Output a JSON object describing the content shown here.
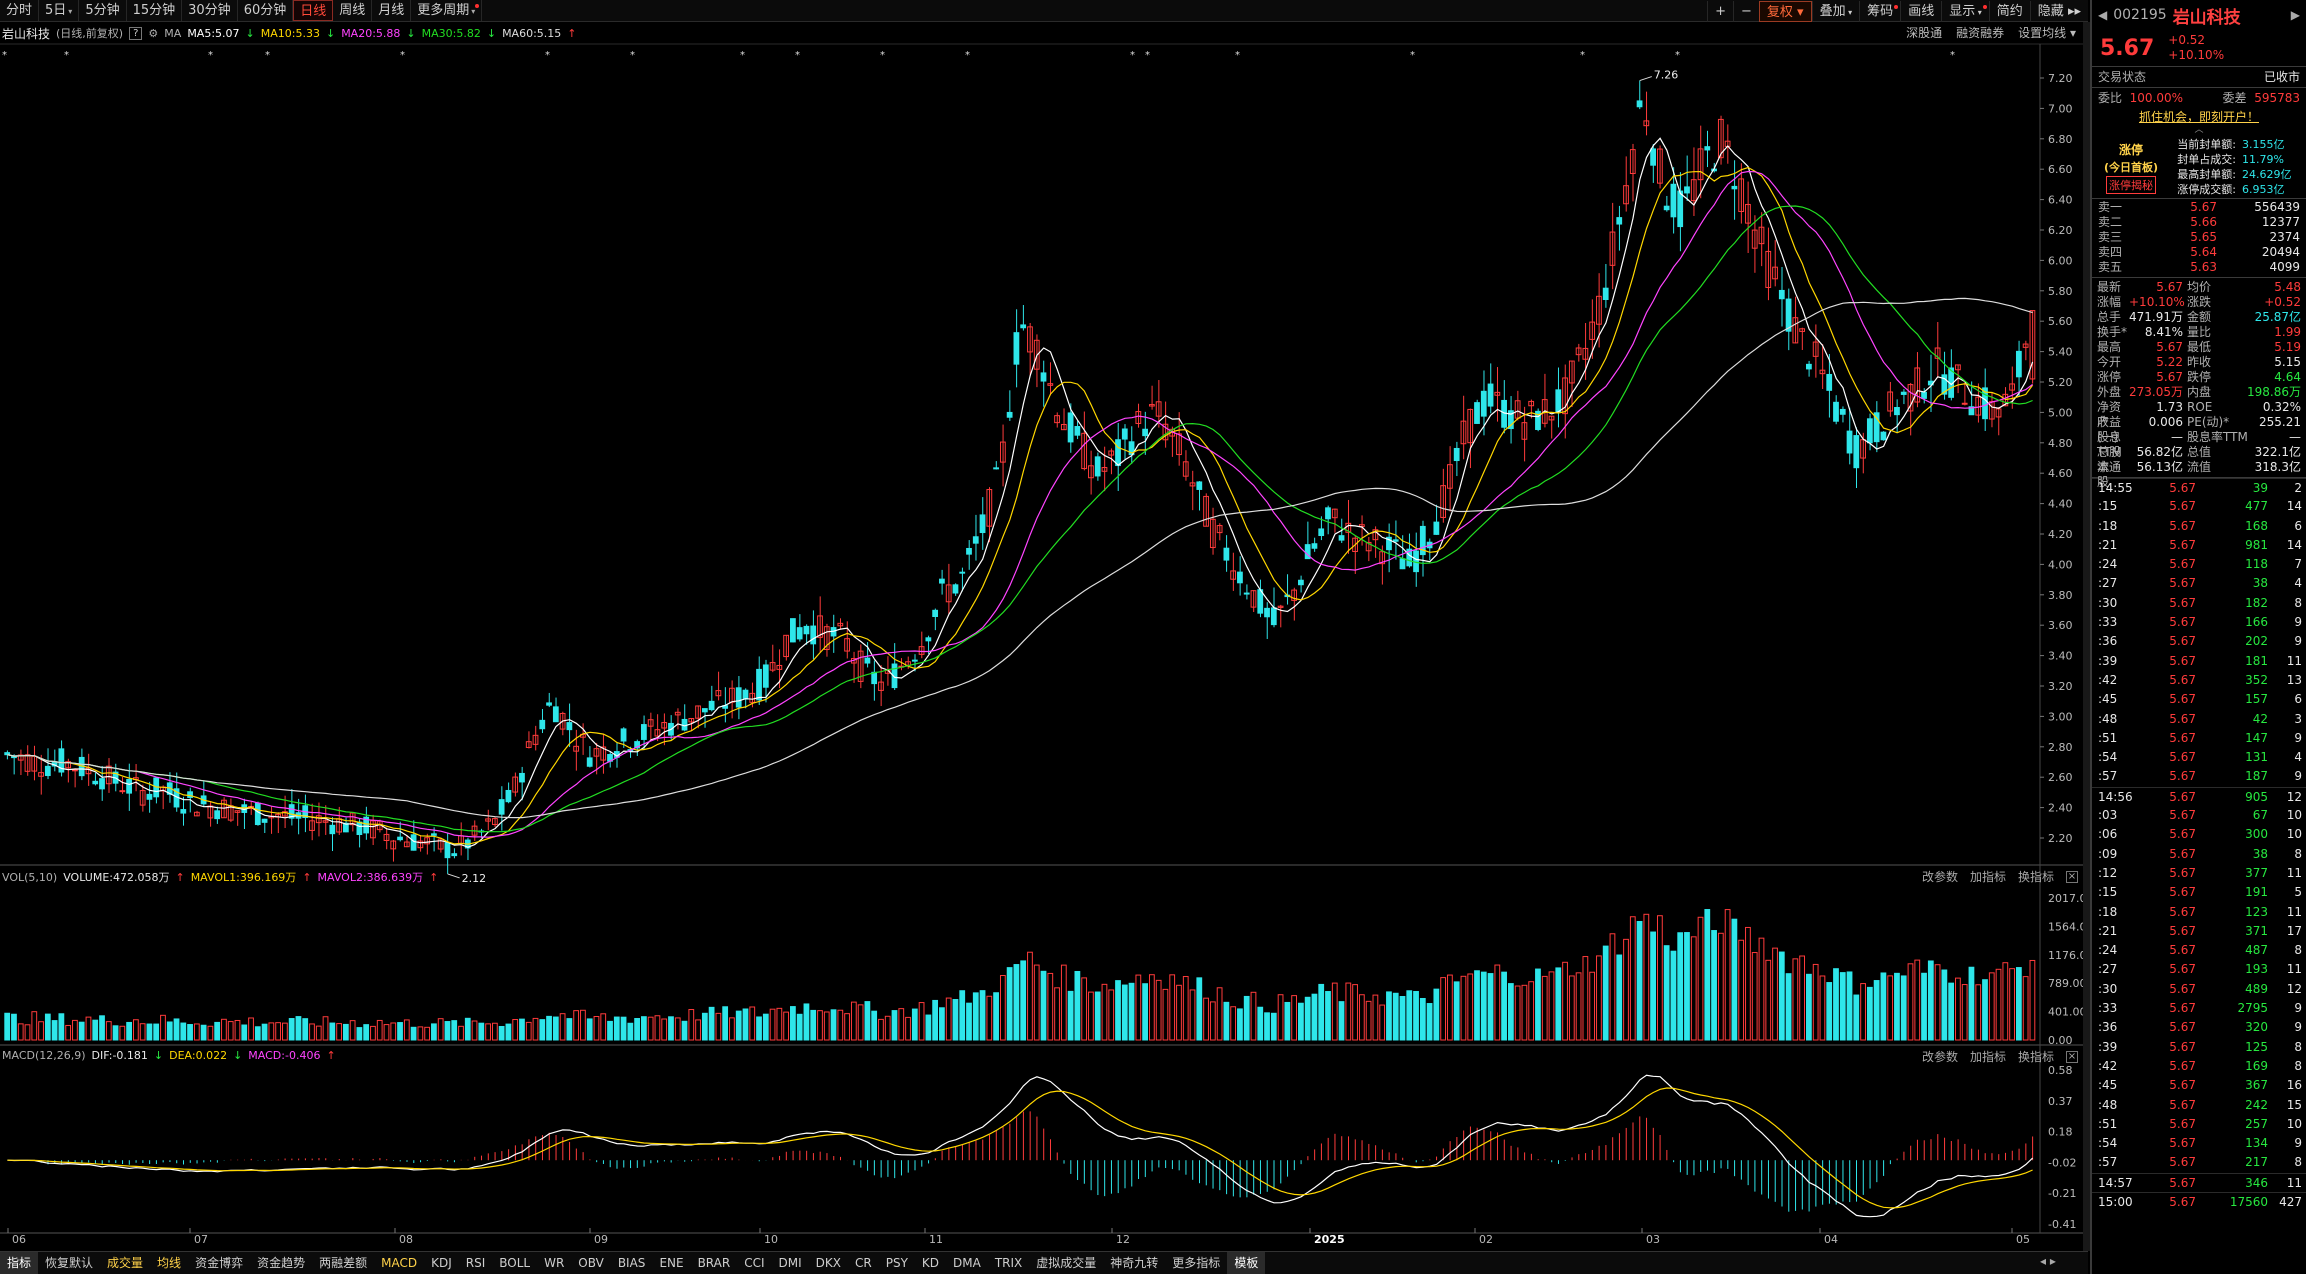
{
  "period_tabs": [
    {
      "label": "分时"
    },
    {
      "label": "5日",
      "caret": true
    },
    {
      "label": "5分钟"
    },
    {
      "label": "15分钟"
    },
    {
      "label": "30分钟"
    },
    {
      "label": "60分钟"
    },
    {
      "label": "日线",
      "active": true
    },
    {
      "label": "周线"
    },
    {
      "label": "月线"
    },
    {
      "label": "更多周期",
      "caret": true,
      "dot": true
    }
  ],
  "toolbar": {
    "plus": "+",
    "minus": "−",
    "fuquan": "复权",
    "diejia": "叠加",
    "chouma": "筹码",
    "huaxian": "画线",
    "xianshi": "显示",
    "jianyue": "简约",
    "yincang": "隐藏"
  },
  "ma_legend": {
    "stock_name": "岩山科技",
    "qualifier": "(日线,前复权)",
    "ma_label": "MA",
    "ma5": "MA5:5.07",
    "ma10": "MA10:5.33",
    "ma20": "MA20:5.88",
    "ma30": "MA30:5.82",
    "ma60": "MA60:5.15"
  },
  "chart_links": {
    "shengutong": "深股通",
    "rongzi": "融资融券",
    "shezhi": "设置均线"
  },
  "price_axis": [
    "7.20",
    "7.00",
    "6.80",
    "6.60",
    "6.40",
    "6.20",
    "6.00",
    "5.80",
    "5.60",
    "5.40",
    "5.20",
    "5.00",
    "4.80",
    "4.60",
    "4.40",
    "4.20",
    "4.00",
    "3.80",
    "3.60",
    "3.40",
    "3.20",
    "3.00",
    "2.80",
    "2.60",
    "2.40",
    "2.20"
  ],
  "annotations": {
    "high": "7.26",
    "low": "2.12"
  },
  "volume_panel": {
    "title": "VOL(5,10)",
    "volume": "VOLUME:472.058万",
    "mavol1": "MAVOL1:396.169万",
    "mavol2": "MAVOL2:386.639万",
    "axis": [
      "2017.00",
      "1564.00",
      "1176.00",
      "789.00",
      "401.00",
      "0.00"
    ]
  },
  "macd_panel": {
    "title": "MACD(12,26,9)",
    "dif": "DIF:-0.181",
    "dea": "DEA:0.022",
    "macd": "MACD:-0.406",
    "axis": [
      "0.58",
      "0.37",
      "0.18",
      "-0.02",
      "-0.21",
      "-0.41"
    ]
  },
  "panel_links": {
    "gaicanshu": "改参数",
    "jiazhibiao": "加指标",
    "huanzhibiao": "换指标"
  },
  "date_axis": [
    "06",
    "07",
    "08",
    "09",
    "10",
    "11",
    "12",
    "2025",
    "02",
    "03",
    "04",
    "05"
  ],
  "bottom_tabs": [
    {
      "label": "指标",
      "active": true
    },
    {
      "label": "恢复默认"
    },
    {
      "label": "成交量",
      "yellow": true
    },
    {
      "label": "均线",
      "yellow": true
    },
    {
      "label": "资金博弈"
    },
    {
      "label": "资金趋势"
    },
    {
      "label": "两融差额"
    },
    {
      "label": "MACD",
      "yellow": true
    },
    {
      "label": "KDJ"
    },
    {
      "label": "RSI"
    },
    {
      "label": "BOLL"
    },
    {
      "label": "WR"
    },
    {
      "label": "OBV"
    },
    {
      "label": "BIAS"
    },
    {
      "label": "ENE"
    },
    {
      "label": "BRAR"
    },
    {
      "label": "CCI"
    },
    {
      "label": "DMI"
    },
    {
      "label": "DKX"
    },
    {
      "label": "CR"
    },
    {
      "label": "PSY"
    },
    {
      "label": "KD"
    },
    {
      "label": "DMA"
    },
    {
      "label": "TRIX"
    },
    {
      "label": "虚拟成交量"
    },
    {
      "label": "神奇九转"
    },
    {
      "label": "更多指标"
    },
    {
      "label": "模板",
      "active": true
    }
  ],
  "quote": {
    "code": "002195",
    "name": "岩山科技",
    "price": "5.67",
    "change": "+0.52",
    "pct": "+10.10%",
    "status_label": "交易状态",
    "status_value": "已收市",
    "weibi_label": "委比",
    "weibi_value": "100.00%",
    "weicha_label": "委差",
    "weicha_value": "595783",
    "promo": "抓住机会，即刻开户！",
    "limit_up_title": "涨停",
    "limit_up_sub": "(今日首板)",
    "limit_up_link": "涨停揭秘",
    "limit_stats": [
      {
        "label": "当前封单额:",
        "value": "3.155亿"
      },
      {
        "label": "封单占成交:",
        "value": "11.79%"
      },
      {
        "label": "最高封单额:",
        "value": "24.629亿"
      },
      {
        "label": "涨停成交额:",
        "value": "6.953亿"
      }
    ]
  },
  "order_book": [
    {
      "label": "卖一",
      "price": "5.67",
      "vol": "556439"
    },
    {
      "label": "卖二",
      "price": "5.66",
      "vol": "12377"
    },
    {
      "label": "卖三",
      "price": "5.65",
      "vol": "2374"
    },
    {
      "label": "卖四",
      "price": "5.64",
      "vol": "20494"
    },
    {
      "label": "卖五",
      "price": "5.63",
      "vol": "4099"
    }
  ],
  "stats": [
    {
      "l1": "最新",
      "v1": "5.67",
      "c1": "red",
      "l2": "均价",
      "v2": "5.48",
      "c2": "red"
    },
    {
      "l1": "涨幅",
      "v1": "+10.10%",
      "c1": "red",
      "l2": "涨跌",
      "v2": "+0.52",
      "c2": "red"
    },
    {
      "l1": "总手",
      "v1": "471.91万",
      "c1": "white",
      "l2": "金额",
      "v2": "25.87亿",
      "c2": "cyan"
    },
    {
      "l1": "换手*",
      "v1": "8.41%",
      "c1": "white",
      "l2": "量比",
      "v2": "1.99",
      "c2": "red"
    },
    {
      "l1": "最高",
      "v1": "5.67",
      "c1": "red",
      "l2": "最低",
      "v2": "5.19",
      "c2": "red"
    },
    {
      "l1": "今开",
      "v1": "5.22",
      "c1": "red",
      "l2": "昨收",
      "v2": "5.15",
      "c2": "white"
    },
    {
      "l1": "涨停",
      "v1": "5.67",
      "c1": "red",
      "l2": "跌停",
      "v2": "4.64",
      "c2": "green"
    },
    {
      "l1": "外盘",
      "v1": "273.05万",
      "c1": "red",
      "l2": "内盘",
      "v2": "198.86万",
      "c2": "green"
    },
    {
      "l1": "净资产",
      "v1": "1.73",
      "c1": "white",
      "l2": "ROE",
      "v2": "0.32%",
      "c2": "white"
    },
    {
      "l1": "收益(一)",
      "v1": "0.006",
      "c1": "white",
      "l2": "PE(动)*",
      "v2": "255.21",
      "c2": "white"
    },
    {
      "l1": "股息TTM",
      "v1": "—",
      "c1": "white",
      "l2": "股息率TTM",
      "v2": "—",
      "c2": "white"
    },
    {
      "l1": "总股本",
      "v1": "56.82亿",
      "c1": "white",
      "l2": "总值",
      "v2": "322.1亿",
      "c2": "white"
    },
    {
      "l1": "流通股",
      "v1": "56.13亿",
      "c1": "white",
      "l2": "流值",
      "v2": "318.3亿",
      "c2": "white"
    }
  ],
  "ticks": [
    {
      "t": "14:55",
      "p": "5.67",
      "v": "39",
      "n": "2"
    },
    {
      "t": ":15",
      "p": "5.67",
      "v": "477",
      "n": "14"
    },
    {
      "t": ":18",
      "p": "5.67",
      "v": "168",
      "n": "6"
    },
    {
      "t": ":21",
      "p": "5.67",
      "v": "981",
      "n": "14"
    },
    {
      "t": ":24",
      "p": "5.67",
      "v": "118",
      "n": "7"
    },
    {
      "t": ":27",
      "p": "5.67",
      "v": "38",
      "n": "4"
    },
    {
      "t": ":30",
      "p": "5.67",
      "v": "182",
      "n": "8"
    },
    {
      "t": ":33",
      "p": "5.67",
      "v": "166",
      "n": "9"
    },
    {
      "t": ":36",
      "p": "5.67",
      "v": "202",
      "n": "9"
    },
    {
      "t": ":39",
      "p": "5.67",
      "v": "181",
      "n": "11"
    },
    {
      "t": ":42",
      "p": "5.67",
      "v": "352",
      "n": "13"
    },
    {
      "t": ":45",
      "p": "5.67",
      "v": "157",
      "n": "6"
    },
    {
      "t": ":48",
      "p": "5.67",
      "v": "42",
      "n": "3"
    },
    {
      "t": ":51",
      "p": "5.67",
      "v": "147",
      "n": "9"
    },
    {
      "t": ":54",
      "p": "5.67",
      "v": "131",
      "n": "4"
    },
    {
      "t": ":57",
      "p": "5.67",
      "v": "187",
      "n": "9"
    },
    {
      "t": "14:56",
      "p": "5.67",
      "v": "905",
      "n": "12"
    },
    {
      "t": ":03",
      "p": "5.67",
      "v": "67",
      "n": "10"
    },
    {
      "t": ":06",
      "p": "5.67",
      "v": "300",
      "n": "10"
    },
    {
      "t": ":09",
      "p": "5.67",
      "v": "38",
      "n": "8"
    },
    {
      "t": ":12",
      "p": "5.67",
      "v": "377",
      "n": "11"
    },
    {
      "t": ":15",
      "p": "5.67",
      "v": "191",
      "n": "5"
    },
    {
      "t": ":18",
      "p": "5.67",
      "v": "123",
      "n": "11"
    },
    {
      "t": ":21",
      "p": "5.67",
      "v": "371",
      "n": "17"
    },
    {
      "t": ":24",
      "p": "5.67",
      "v": "487",
      "n": "8"
    },
    {
      "t": ":27",
      "p": "5.67",
      "v": "193",
      "n": "11"
    },
    {
      "t": ":30",
      "p": "5.67",
      "v": "489",
      "n": "12"
    },
    {
      "t": ":33",
      "p": "5.67",
      "v": "2795",
      "n": "9"
    },
    {
      "t": ":36",
      "p": "5.67",
      "v": "320",
      "n": "9"
    },
    {
      "t": ":39",
      "p": "5.67",
      "v": "125",
      "n": "8"
    },
    {
      "t": ":42",
      "p": "5.67",
      "v": "169",
      "n": "8"
    },
    {
      "t": ":45",
      "p": "5.67",
      "v": "367",
      "n": "16"
    },
    {
      "t": ":48",
      "p": "5.67",
      "v": "242",
      "n": "15"
    },
    {
      "t": ":51",
      "p": "5.67",
      "v": "257",
      "n": "10"
    },
    {
      "t": ":54",
      "p": "5.67",
      "v": "134",
      "n": "9"
    },
    {
      "t": ":57",
      "p": "5.67",
      "v": "217",
      "n": "8"
    },
    {
      "t": "14:57",
      "p": "5.67",
      "v": "346",
      "n": "11"
    },
    {
      "t": "15:00",
      "p": "5.67",
      "v": "17560",
      "n": "427"
    }
  ],
  "colors": {
    "up": "#ff3b3b",
    "down": "#2ee6ea",
    "ma5": "#ffffff",
    "ma10": "#ffd700",
    "ma20": "#ff44ff",
    "ma30": "#22dd22",
    "ma60": "#dddddd"
  },
  "chart_data": {
    "type": "candlestick",
    "ylim": [
      2.1,
      7.3
    ],
    "close_path": [
      2.75,
      2.72,
      2.68,
      2.7,
      2.65,
      2.6,
      2.55,
      2.5,
      2.52,
      2.45,
      2.42,
      2.4,
      2.38,
      2.36,
      2.35,
      2.33,
      2.32,
      2.3,
      2.28,
      2.25,
      2.2,
      2.18,
      2.15,
      2.12,
      2.2,
      2.3,
      2.5,
      2.85,
      3.1,
      2.9,
      2.75,
      2.8,
      2.85,
      2.9,
      2.95,
      3.0,
      3.05,
      3.1,
      3.15,
      3.25,
      3.5,
      3.6,
      3.55,
      3.5,
      3.3,
      3.2,
      3.35,
      3.5,
      3.8,
      3.9,
      4.2,
      4.6,
      5.6,
      5.4,
      5.0,
      4.8,
      4.6,
      4.7,
      4.9,
      5.0,
      4.8,
      4.5,
      4.2,
      4.0,
      3.8,
      3.6,
      3.8,
      4.1,
      4.3,
      4.2,
      4.15,
      4.1,
      4.0,
      4.2,
      4.5,
      4.9,
      5.1,
      5.0,
      4.95,
      5.0,
      5.1,
      5.4,
      5.8,
      6.4,
      7.1,
      6.5,
      6.3,
      6.6,
      6.8,
      6.5,
      6.1,
      5.8,
      5.5,
      5.3,
      5.0,
      4.75,
      4.9,
      5.05,
      5.15,
      5.3,
      5.2,
      5.1,
      5.0,
      5.1,
      5.67
    ],
    "volume_max": 2017
  }
}
